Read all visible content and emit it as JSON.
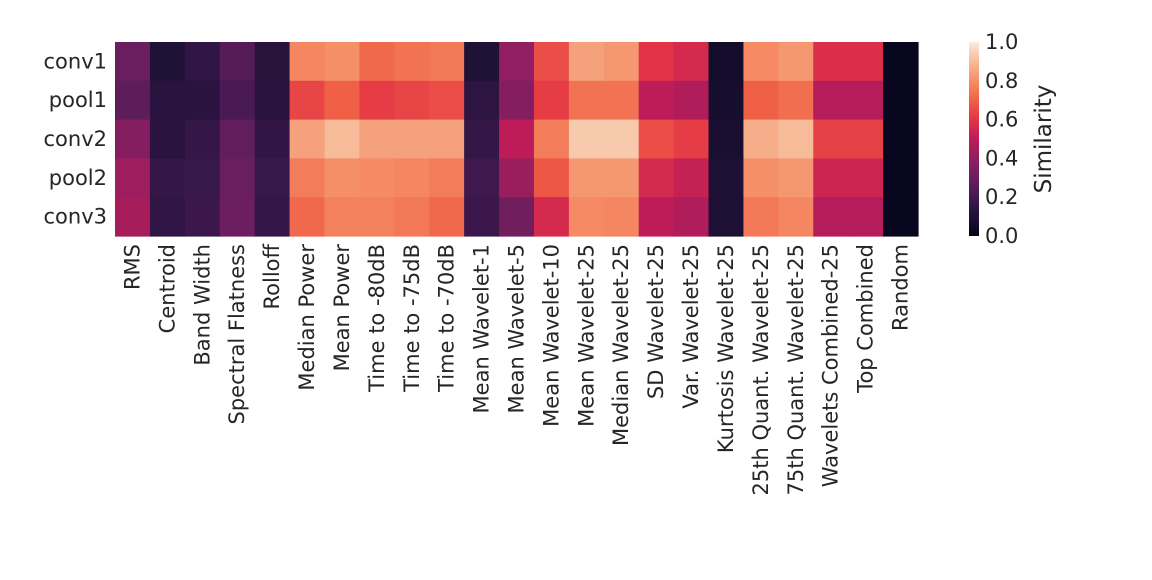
{
  "chart_data": {
    "type": "heatmap",
    "rows": [
      "conv1",
      "pool1",
      "conv2",
      "pool2",
      "conv3"
    ],
    "columns": [
      "RMS",
      "Centroid",
      "Band Width",
      "Spectral Flatness",
      "Rolloff",
      "Median Power",
      "Mean Power",
      "Time to -80dB",
      "Time to -75dB",
      "Time to -70dB",
      "Mean Wavelet-1",
      "Mean Wavelet-5",
      "Mean Wavelet-10",
      "Mean Wavelet-25",
      "Median Wavelet-25",
      "SD Wavelet-25",
      "Var. Wavelet-25",
      "Kurtosis Wavelet-25",
      "25th Quant. Wavelet-25",
      "75th Quant. Wavelet-25",
      "Wavelets Combined-25",
      "Top Combined",
      "Random"
    ],
    "values": [
      [
        0.3,
        0.1,
        0.15,
        0.25,
        0.12,
        0.78,
        0.8,
        0.72,
        0.74,
        0.75,
        0.1,
        0.4,
        0.66,
        0.84,
        0.82,
        0.6,
        0.56,
        0.06,
        0.79,
        0.82,
        0.58,
        0.58,
        0.02
      ],
      [
        0.27,
        0.13,
        0.13,
        0.22,
        0.13,
        0.64,
        0.7,
        0.62,
        0.64,
        0.66,
        0.14,
        0.37,
        0.62,
        0.74,
        0.74,
        0.5,
        0.47,
        0.07,
        0.7,
        0.73,
        0.48,
        0.48,
        0.02
      ],
      [
        0.37,
        0.13,
        0.16,
        0.28,
        0.15,
        0.84,
        0.9,
        0.84,
        0.84,
        0.84,
        0.16,
        0.5,
        0.76,
        0.93,
        0.93,
        0.66,
        0.62,
        0.08,
        0.87,
        0.9,
        0.63,
        0.63,
        0.02
      ],
      [
        0.43,
        0.16,
        0.17,
        0.3,
        0.17,
        0.76,
        0.8,
        0.79,
        0.78,
        0.76,
        0.19,
        0.42,
        0.68,
        0.82,
        0.82,
        0.56,
        0.52,
        0.09,
        0.8,
        0.82,
        0.54,
        0.54,
        0.02
      ],
      [
        0.45,
        0.15,
        0.18,
        0.31,
        0.16,
        0.72,
        0.77,
        0.77,
        0.75,
        0.72,
        0.18,
        0.32,
        0.56,
        0.79,
        0.78,
        0.5,
        0.47,
        0.09,
        0.75,
        0.78,
        0.48,
        0.48,
        0.02
      ]
    ],
    "vmin": 0.0,
    "vmax": 1.0,
    "colormap": "rocket",
    "colorbar": {
      "label": "Similarity",
      "ticks": [
        "0.0",
        "0.2",
        "0.4",
        "0.6",
        "0.8",
        "1.0"
      ]
    },
    "title": "",
    "xlabel": "",
    "ylabel": ""
  }
}
